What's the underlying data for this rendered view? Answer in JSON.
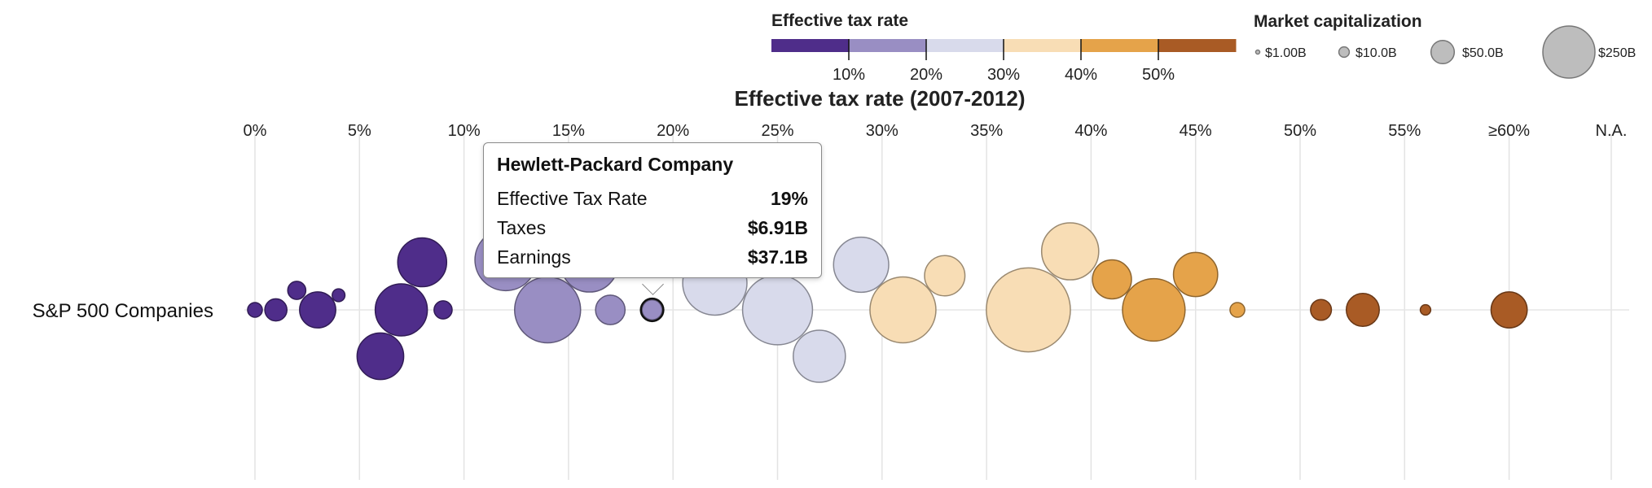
{
  "chart_data": {
    "type": "scatter",
    "title": "Effective tax rate (2007-2012)",
    "row_label": "S&P 500 Companies",
    "x_ticks": [
      "0%",
      "5%",
      "10%",
      "15%",
      "20%",
      "25%",
      "30%",
      "35%",
      "40%",
      "45%",
      "50%",
      "55%",
      "≥60%",
      "N.A."
    ],
    "color_legend": {
      "title": "Effective tax rate",
      "thresholds": [
        "10%",
        "20%",
        "30%",
        "40%",
        "50%"
      ],
      "colors": [
        "#4f2d8a",
        "#998ec3",
        "#d8daeb",
        "#f8ddb5",
        "#e5a34a",
        "#a95b25"
      ]
    },
    "size_legend": {
      "title": "Market capitalization",
      "labels": [
        "$1.00B",
        "$10.0B",
        "$50.0B",
        "$250B"
      ],
      "values": [
        1.0,
        10.0,
        50.0,
        250
      ]
    },
    "na_color": "#808080",
    "points": [
      {
        "x": 19,
        "cap": 37.1
      },
      {
        "x": 0,
        "cap": 20
      },
      {
        "x": 1,
        "cap": 45
      },
      {
        "x": 2,
        "cap": 30
      },
      {
        "x": 3,
        "cap": 120
      },
      {
        "x": 4,
        "cap": 15
      },
      {
        "x": 6,
        "cap": 200
      },
      {
        "x": 7,
        "cap": 250
      },
      {
        "x": 8,
        "cap": 220
      },
      {
        "x": 9,
        "cap": 30
      },
      {
        "x": 12,
        "cap": 350
      },
      {
        "x": 14,
        "cap": 400
      },
      {
        "x": 16,
        "cap": 300
      },
      {
        "x": 17,
        "cap": 80
      },
      {
        "x": 22,
        "cap": 380
      },
      {
        "x": 25,
        "cap": 450
      },
      {
        "x": 27,
        "cap": 250
      },
      {
        "x": 29,
        "cap": 280
      },
      {
        "x": 31,
        "cap": 400
      },
      {
        "x": 33,
        "cap": 150
      },
      {
        "x": 37,
        "cap": 650
      },
      {
        "x": 39,
        "cap": 300
      },
      {
        "x": 41,
        "cap": 140
      },
      {
        "x": 43,
        "cap": 360
      },
      {
        "x": 45,
        "cap": 180
      },
      {
        "x": 47,
        "cap": 20
      },
      {
        "x": 51,
        "cap": 40
      },
      {
        "x": 53,
        "cap": 100
      },
      {
        "x": 56,
        "cap": 10
      },
      {
        "x": 60,
        "cap": 120
      }
    ]
  },
  "tooltip": {
    "company": "Hewlett-Packard Company",
    "rows": [
      {
        "label": "Effective Tax Rate",
        "value": "19%"
      },
      {
        "label": "Taxes",
        "value": "$6.91B"
      },
      {
        "label": "Earnings",
        "value": "$37.1B"
      }
    ]
  }
}
